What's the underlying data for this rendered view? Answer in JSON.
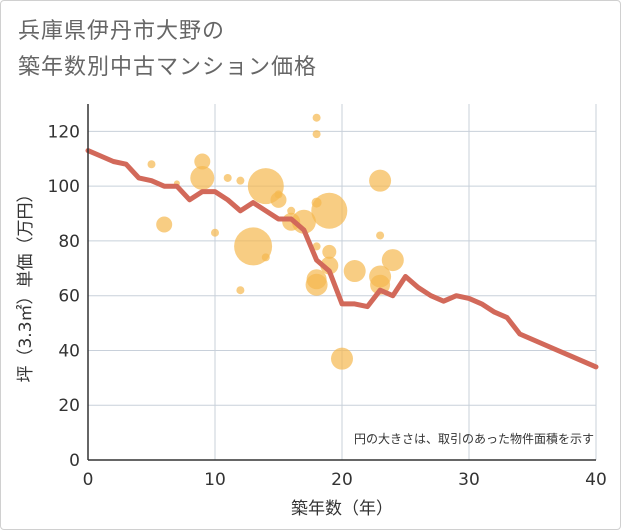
{
  "title_line1": "兵庫県伊丹市大野の",
  "title_line2": "築年数別中古マンション価格",
  "chart_data": {
    "type": "scatter",
    "xlabel": "築年数（年）",
    "ylabel": "坪（3.3㎡）単価（万円）",
    "xlim": [
      0,
      40
    ],
    "ylim": [
      0,
      130
    ],
    "xticks": [
      0,
      10,
      20,
      30,
      40
    ],
    "yticks": [
      0,
      20,
      40,
      60,
      80,
      100,
      120
    ],
    "grid": true,
    "note": "円の大きさは、取引のあった物件面積を示す",
    "colors": {
      "bubble": "#f5b84e",
      "line": "#d2695a",
      "grid": "#c8d0da"
    },
    "bubbles": [
      {
        "x": 5,
        "y": 108,
        "size": 4
      },
      {
        "x": 6,
        "y": 86,
        "size": 8
      },
      {
        "x": 7,
        "y": 101,
        "size": 3
      },
      {
        "x": 9,
        "y": 103,
        "size": 12
      },
      {
        "x": 9,
        "y": 109,
        "size": 8
      },
      {
        "x": 10,
        "y": 83,
        "size": 4
      },
      {
        "x": 11,
        "y": 103,
        "size": 4
      },
      {
        "x": 12,
        "y": 102,
        "size": 4
      },
      {
        "x": 12,
        "y": 62,
        "size": 4
      },
      {
        "x": 13,
        "y": 78,
        "size": 19
      },
      {
        "x": 14,
        "y": 100,
        "size": 18
      },
      {
        "x": 14,
        "y": 74,
        "size": 4
      },
      {
        "x": 15,
        "y": 95,
        "size": 8
      },
      {
        "x": 15,
        "y": 97,
        "size": 4
      },
      {
        "x": 16,
        "y": 91,
        "size": 4
      },
      {
        "x": 16,
        "y": 87,
        "size": 9
      },
      {
        "x": 17,
        "y": 87,
        "size": 12
      },
      {
        "x": 18,
        "y": 125,
        "size": 4
      },
      {
        "x": 18,
        "y": 119,
        "size": 4
      },
      {
        "x": 18,
        "y": 94,
        "size": 5
      },
      {
        "x": 18,
        "y": 78,
        "size": 4
      },
      {
        "x": 18,
        "y": 66,
        "size": 10
      },
      {
        "x": 18,
        "y": 64,
        "size": 11
      },
      {
        "x": 19,
        "y": 91,
        "size": 18
      },
      {
        "x": 19,
        "y": 76,
        "size": 7
      },
      {
        "x": 19,
        "y": 71,
        "size": 9
      },
      {
        "x": 20,
        "y": 37,
        "size": 11
      },
      {
        "x": 21,
        "y": 69,
        "size": 11
      },
      {
        "x": 23,
        "y": 102,
        "size": 11
      },
      {
        "x": 23,
        "y": 82,
        "size": 4
      },
      {
        "x": 23,
        "y": 67,
        "size": 11
      },
      {
        "x": 23,
        "y": 64,
        "size": 10
      },
      {
        "x": 24,
        "y": 73,
        "size": 11
      }
    ],
    "trend": [
      {
        "x": 0,
        "y": 113
      },
      {
        "x": 1,
        "y": 111
      },
      {
        "x": 2,
        "y": 109
      },
      {
        "x": 3,
        "y": 108
      },
      {
        "x": 4,
        "y": 103
      },
      {
        "x": 5,
        "y": 102
      },
      {
        "x": 6,
        "y": 100
      },
      {
        "x": 7,
        "y": 100
      },
      {
        "x": 8,
        "y": 95
      },
      {
        "x": 9,
        "y": 98
      },
      {
        "x": 10,
        "y": 98
      },
      {
        "x": 11,
        "y": 95
      },
      {
        "x": 12,
        "y": 91
      },
      {
        "x": 13,
        "y": 94
      },
      {
        "x": 14,
        "y": 91
      },
      {
        "x": 15,
        "y": 88
      },
      {
        "x": 16,
        "y": 88
      },
      {
        "x": 17,
        "y": 84
      },
      {
        "x": 18,
        "y": 73
      },
      {
        "x": 19,
        "y": 69
      },
      {
        "x": 20,
        "y": 57
      },
      {
        "x": 21,
        "y": 57
      },
      {
        "x": 22,
        "y": 56
      },
      {
        "x": 23,
        "y": 62
      },
      {
        "x": 24,
        "y": 60
      },
      {
        "x": 25,
        "y": 67
      },
      {
        "x": 26,
        "y": 63
      },
      {
        "x": 27,
        "y": 60
      },
      {
        "x": 28,
        "y": 58
      },
      {
        "x": 29,
        "y": 60
      },
      {
        "x": 30,
        "y": 59
      },
      {
        "x": 31,
        "y": 57
      },
      {
        "x": 32,
        "y": 54
      },
      {
        "x": 33,
        "y": 52
      },
      {
        "x": 34,
        "y": 46
      },
      {
        "x": 35,
        "y": 44
      },
      {
        "x": 36,
        "y": 42
      },
      {
        "x": 37,
        "y": 40
      },
      {
        "x": 38,
        "y": 38
      },
      {
        "x": 39,
        "y": 36
      },
      {
        "x": 40,
        "y": 34
      }
    ]
  }
}
